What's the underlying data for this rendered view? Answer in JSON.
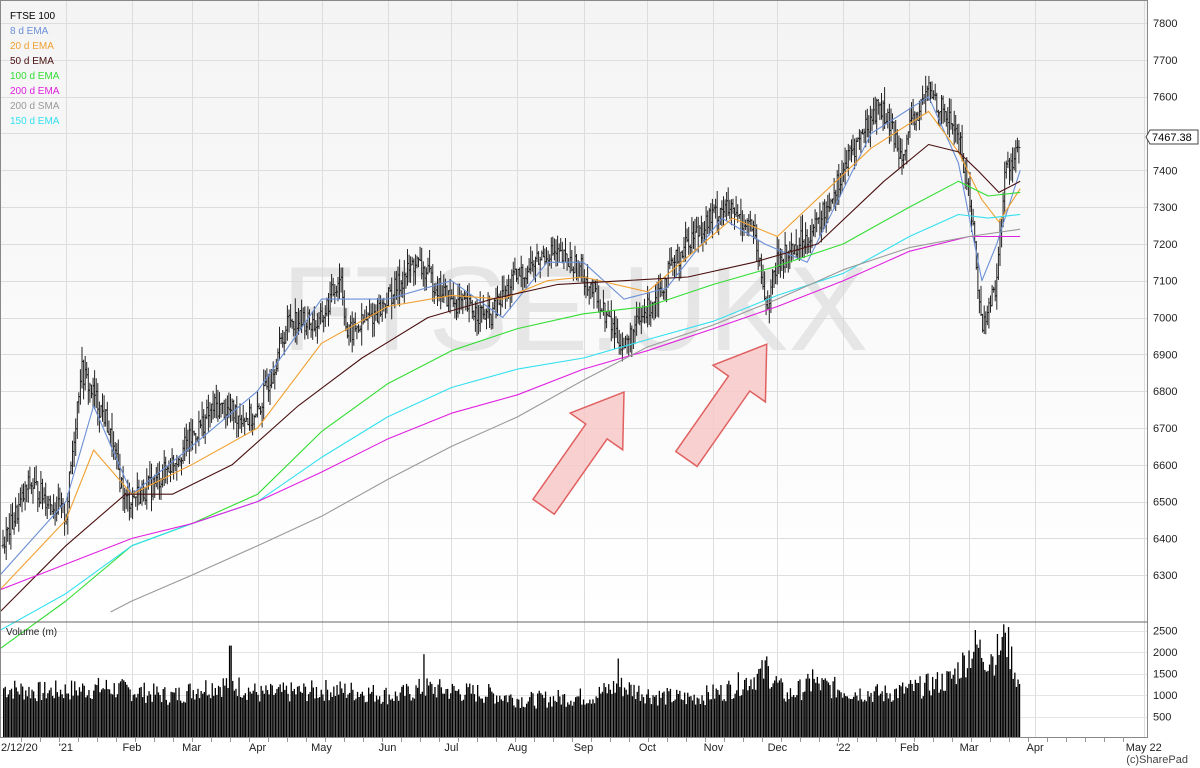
{
  "chart_data": {
    "type": "line",
    "price_axis": {
      "min": 6200,
      "max": 7830,
      "ticks": [
        6300,
        6400,
        6500,
        6600,
        6700,
        6800,
        6900,
        7000,
        7100,
        7200,
        7300,
        7400,
        7500,
        7600,
        7700,
        7800
      ]
    },
    "volume_axis": {
      "min": 0,
      "max": 2700,
      "ticks": [
        500,
        1000,
        1500,
        2000,
        2500
      ]
    },
    "x_labels": [
      "2/12/20",
      "'21",
      "Feb",
      "Mar",
      "Apr",
      "May",
      "Jun",
      "Jul",
      "Aug",
      "Sep",
      "Oct",
      "Nov",
      "Dec",
      "'22",
      "Feb",
      "Mar",
      "Apr",
      "May 22"
    ],
    "grid": true,
    "watermark": "FTSE:UKX",
    "volume_label": "Volume (m)",
    "last_price": "7467.38",
    "legend": [
      {
        "label": "FTSE 100",
        "color": "#000000"
      },
      {
        "label": "8 d EMA",
        "color": "#6b8fd6"
      },
      {
        "label": "20 d EMA",
        "color": "#f0a030"
      },
      {
        "label": "50 d EMA",
        "color": "#4a1010"
      },
      {
        "label": "100 d EMA",
        "color": "#33dd33"
      },
      {
        "label": "200 d EMA",
        "color": "#e020e0"
      },
      {
        "label": "200 d SMA",
        "color": "#999999"
      },
      {
        "label": "150 d EMA",
        "color": "#33e0f0"
      }
    ],
    "price": {
      "x": [
        "2020-12-02",
        "2020-12-15",
        "2021-01-01",
        "2021-01-08",
        "2021-01-20",
        "2021-01-29",
        "2021-02-12",
        "2021-02-26",
        "2021-03-12",
        "2021-03-31",
        "2021-04-16",
        "2021-04-30",
        "2021-05-10",
        "2021-05-13",
        "2021-05-28",
        "2021-06-14",
        "2021-06-30",
        "2021-07-19",
        "2021-07-30",
        "2021-08-16",
        "2021-08-31",
        "2021-09-10",
        "2021-09-20",
        "2021-10-04",
        "2021-10-20",
        "2021-11-05",
        "2021-11-19",
        "2021-11-26",
        "2021-12-01",
        "2021-12-20",
        "2022-01-05",
        "2022-01-18",
        "2022-01-28",
        "2022-02-10",
        "2022-02-24",
        "2022-03-02",
        "2022-03-07",
        "2022-03-14",
        "2022-03-18",
        "2022-03-25"
      ],
      "close": [
        6380,
        6550,
        6460,
        6860,
        6720,
        6500,
        6550,
        6650,
        6760,
        6720,
        7000,
        6980,
        7120,
        6950,
        7020,
        7150,
        7050,
        7000,
        7100,
        7180,
        7130,
        7020,
        6920,
        7050,
        7210,
        7300,
        7250,
        7030,
        7150,
        7250,
        7450,
        7580,
        7450,
        7620,
        7500,
        7300,
        6970,
        7100,
        7400,
        7467
      ]
    },
    "series": [
      {
        "name": "8 d EMA",
        "x": [
          "2020-12-01",
          "2021-01-01",
          "2021-01-14",
          "2021-02-01",
          "2021-03-01",
          "2021-04-01",
          "2021-05-01",
          "2021-06-01",
          "2021-07-01",
          "2021-07-25",
          "2021-08-15",
          "2021-09-01",
          "2021-09-20",
          "2021-10-10",
          "2021-11-05",
          "2021-11-25",
          "2021-12-15",
          "2022-01-14",
          "2022-02-10",
          "2022-02-24",
          "2022-03-07",
          "2022-03-14",
          "2022-03-25"
        ],
        "values": [
          6300,
          6500,
          6760,
          6520,
          6650,
          6800,
          7050,
          7050,
          7100,
          7000,
          7150,
          7150,
          7050,
          7080,
          7270,
          7200,
          7150,
          7500,
          7600,
          7420,
          7100,
          7200,
          7400
        ]
      },
      {
        "name": "20 d EMA",
        "x": [
          "2020-12-01",
          "2021-01-01",
          "2021-01-14",
          "2021-02-01",
          "2021-03-01",
          "2021-04-01",
          "2021-05-01",
          "2021-06-01",
          "2021-07-01",
          "2021-07-25",
          "2021-08-15",
          "2021-09-01",
          "2021-10-01",
          "2021-11-10",
          "2021-12-01",
          "2022-01-14",
          "2022-02-10",
          "2022-02-24",
          "2022-03-07",
          "2022-03-15",
          "2022-03-25"
        ],
        "values": [
          6260,
          6450,
          6640,
          6520,
          6600,
          6700,
          6930,
          7030,
          7060,
          7050,
          7100,
          7110,
          7070,
          7270,
          7220,
          7460,
          7560,
          7450,
          7320,
          7260,
          7350
        ]
      },
      {
        "name": "50 d EMA",
        "x": [
          "2020-12-01",
          "2021-01-01",
          "2021-01-29",
          "2021-02-20",
          "2021-03-20",
          "2021-04-20",
          "2021-05-20",
          "2021-06-20",
          "2021-07-20",
          "2021-08-20",
          "2021-09-20",
          "2021-10-20",
          "2021-11-20",
          "2021-12-20",
          "2022-01-20",
          "2022-02-10",
          "2022-02-24",
          "2022-03-05",
          "2022-03-15",
          "2022-03-25"
        ],
        "values": [
          6200,
          6380,
          6520,
          6520,
          6600,
          6760,
          6890,
          7000,
          7050,
          7090,
          7100,
          7110,
          7150,
          7200,
          7370,
          7470,
          7450,
          7400,
          7340,
          7370
        ]
      },
      {
        "name": "100 d EMA",
        "x": [
          "2020-12-01",
          "2021-01-01",
          "2021-02-01",
          "2021-03-01",
          "2021-04-01",
          "2021-05-01",
          "2021-06-01",
          "2021-07-01",
          "2021-08-01",
          "2021-09-01",
          "2021-10-01",
          "2021-11-01",
          "2021-12-01",
          "2022-01-01",
          "2022-02-01",
          "2022-02-24",
          "2022-03-10",
          "2022-03-25"
        ],
        "values": [
          6100,
          6230,
          6380,
          6440,
          6520,
          6690,
          6820,
          6910,
          6970,
          7010,
          7030,
          7090,
          7140,
          7200,
          7300,
          7370,
          7330,
          7340
        ]
      },
      {
        "name": "150 d EMA",
        "x": [
          "2020-12-01",
          "2021-01-01",
          "2021-02-01",
          "2021-03-01",
          "2021-04-01",
          "2021-05-01",
          "2021-06-01",
          "2021-07-01",
          "2021-08-01",
          "2021-09-01",
          "2021-10-01",
          "2021-11-01",
          "2021-12-01",
          "2022-01-01",
          "2022-02-01",
          "2022-02-24",
          "2022-03-10",
          "2022-03-25"
        ],
        "values": [
          6150,
          6250,
          6380,
          6440,
          6500,
          6620,
          6730,
          6810,
          6860,
          6890,
          6940,
          6990,
          7060,
          7120,
          7220,
          7280,
          7270,
          7280
        ]
      },
      {
        "name": "200 d EMA",
        "x": [
          "2020-12-01",
          "2021-01-01",
          "2021-02-01",
          "2021-03-01",
          "2021-04-01",
          "2021-05-01",
          "2021-06-01",
          "2021-07-01",
          "2021-08-01",
          "2021-09-01",
          "2021-10-01",
          "2021-11-01",
          "2021-12-01",
          "2022-01-01",
          "2022-02-01",
          "2022-03-01",
          "2022-03-25"
        ],
        "values": [
          6260,
          6330,
          6400,
          6440,
          6500,
          6580,
          6670,
          6740,
          6790,
          6860,
          6910,
          6970,
          7030,
          7100,
          7180,
          7220,
          7220
        ]
      },
      {
        "name": "200 d SMA",
        "x": [
          "2021-01-22",
          "2021-02-01",
          "2021-03-01",
          "2021-04-01",
          "2021-05-01",
          "2021-06-01",
          "2021-07-01",
          "2021-08-01",
          "2021-09-01",
          "2021-10-01",
          "2021-11-01",
          "2021-12-01",
          "2022-01-01",
          "2022-02-01",
          "2022-03-01",
          "2022-03-25"
        ],
        "values": [
          6200,
          6230,
          6300,
          6380,
          6460,
          6560,
          6650,
          6730,
          6830,
          6920,
          6980,
          7050,
          7130,
          7190,
          7220,
          7240
        ]
      }
    ],
    "volume": {
      "x": [
        "2020-12-01",
        "2020-12-20",
        "2021-01-05",
        "2021-01-20",
        "2021-02-05",
        "2021-02-20",
        "2021-03-05",
        "2021-03-19",
        "2021-04-02",
        "2021-04-20",
        "2021-05-05",
        "2021-05-20",
        "2021-06-05",
        "2021-06-18",
        "2021-07-05",
        "2021-07-20",
        "2021-08-05",
        "2021-08-20",
        "2021-09-05",
        "2021-09-17",
        "2021-10-05",
        "2021-10-20",
        "2021-11-05",
        "2021-11-26",
        "2021-12-05",
        "2021-12-17",
        "2022-01-05",
        "2022-01-20",
        "2022-02-05",
        "2022-02-20",
        "2022-03-04",
        "2022-03-11",
        "2022-03-18",
        "2022-03-25"
      ],
      "values": [
        1200,
        1100,
        1150,
        1200,
        1100,
        1000,
        1200,
        1300,
        1050,
        1100,
        1150,
        1100,
        1000,
        1200,
        1100,
        1050,
        900,
        950,
        1000,
        1250,
        1000,
        950,
        1100,
        1600,
        1000,
        1300,
        1100,
        1050,
        1200,
        1400,
        2200,
        1800,
        2400,
        1100
      ],
      "spikes": [
        {
          "x": "2021-03-19",
          "value": 2150
        },
        {
          "x": "2021-06-18",
          "value": 1950
        },
        {
          "x": "2021-09-17",
          "value": 1850
        },
        {
          "x": "2021-11-26",
          "value": 1900
        },
        {
          "x": "2021-12-17",
          "value": 1600
        },
        {
          "x": "2022-03-11",
          "value": 1950
        },
        {
          "x": "2022-03-18",
          "value": 2450
        }
      ]
    },
    "annotations": [
      {
        "kind": "arrow",
        "target_x": "2021-09-20",
        "target_price": 6830
      },
      {
        "kind": "arrow",
        "target_x": "2021-11-26",
        "target_price": 6960
      }
    ]
  },
  "copyright": "(c)SharePad"
}
